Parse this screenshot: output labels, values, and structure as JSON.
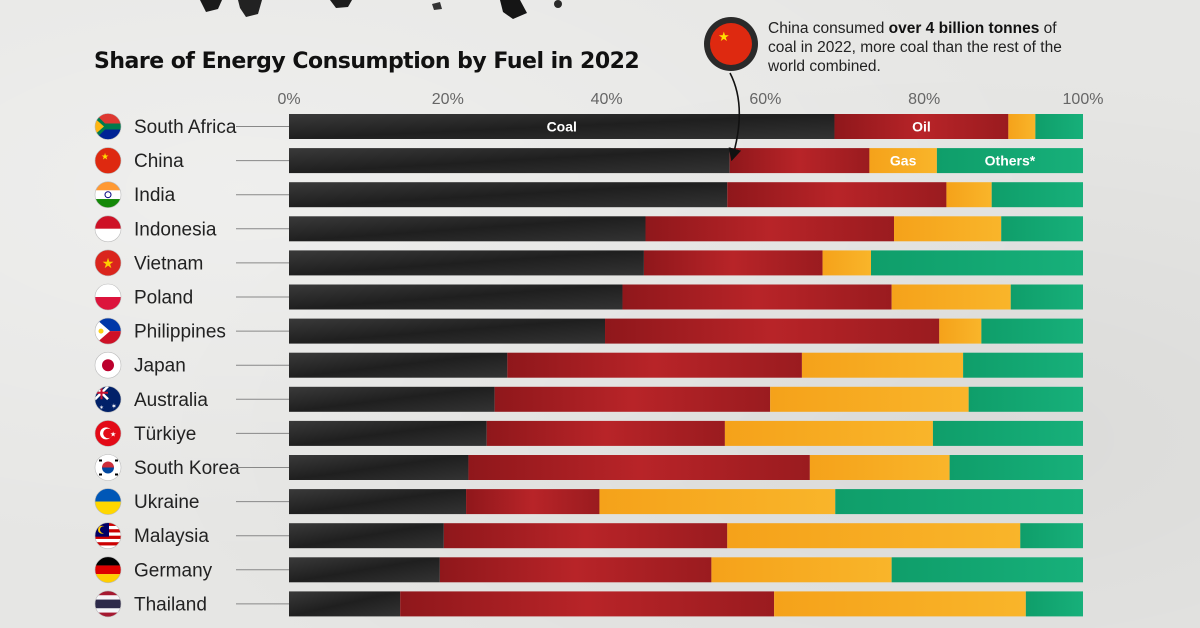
{
  "title": "Share of Energy Consumption by Fuel in 2022",
  "callout": {
    "text_before": "China consumed ",
    "text_bold": "over 4 billion tonnes",
    "text_after": " of coal in 2022, more coal than the rest of the world combined.",
    "icon": "china-flag-coal-icon"
  },
  "colors": {
    "coal": "#2b2b2b",
    "oil": "#a61e22",
    "gas": "#f7a81b",
    "others": "#13a772",
    "background": "#e6e6e4"
  },
  "chart_data": {
    "type": "bar",
    "orientation": "horizontal",
    "stacked": true,
    "normalized": true,
    "title": "Share of Energy Consumption by Fuel in 2022",
    "xlim": [
      0,
      100
    ],
    "x_ticks": [
      "0%",
      "20%",
      "40%",
      "60%",
      "80%",
      "100%"
    ],
    "categories": [
      "South Africa",
      "China",
      "India",
      "Indonesia",
      "Vietnam",
      "Poland",
      "Philippines",
      "Japan",
      "Australia",
      "Türkiye",
      "South Korea",
      "Ukraine",
      "Malaysia",
      "Germany",
      "Thailand"
    ],
    "series": [
      {
        "name": "Coal",
        "color": "#2b2b2b",
        "values": [
          68.7,
          55.5,
          55.2,
          44.9,
          44.7,
          42.0,
          39.8,
          27.5,
          25.9,
          24.9,
          22.6,
          22.3,
          19.5,
          19.0,
          14.0
        ]
      },
      {
        "name": "Oil",
        "color": "#a61e22",
        "values": [
          21.9,
          17.6,
          27.6,
          31.3,
          22.5,
          33.9,
          42.1,
          37.1,
          34.7,
          30.0,
          43.0,
          16.8,
          35.7,
          34.2,
          47.1
        ]
      },
      {
        "name": "Gas",
        "color": "#f7a81b",
        "values": [
          3.4,
          8.5,
          5.7,
          13.5,
          6.1,
          15.0,
          5.3,
          20.3,
          25.0,
          26.2,
          17.6,
          29.7,
          36.9,
          22.7,
          31.7
        ]
      },
      {
        "name": "Others*",
        "color": "#13a772",
        "values": [
          6.0,
          18.4,
          11.5,
          10.3,
          26.7,
          9.1,
          12.8,
          15.1,
          14.4,
          18.9,
          16.8,
          31.2,
          7.9,
          24.1,
          7.2
        ]
      }
    ],
    "inline_labels": [
      {
        "text": "Coal",
        "row": "South Africa",
        "series": "Coal"
      },
      {
        "text": "Oil",
        "row": "South Africa",
        "series": "Oil"
      },
      {
        "text": "Gas",
        "row": "China",
        "series": "Gas"
      },
      {
        "text": "Others*",
        "row": "China",
        "series": "Others*"
      }
    ],
    "flags": {
      "South Africa": "south-africa-flag-icon",
      "China": "china-flag-icon",
      "India": "india-flag-icon",
      "Indonesia": "indonesia-flag-icon",
      "Vietnam": "vietnam-flag-icon",
      "Poland": "poland-flag-icon",
      "Philippines": "philippines-flag-icon",
      "Japan": "japan-flag-icon",
      "Australia": "australia-flag-icon",
      "Türkiye": "turkiye-flag-icon",
      "South Korea": "south-korea-flag-icon",
      "Ukraine": "ukraine-flag-icon",
      "Malaysia": "malaysia-flag-icon",
      "Germany": "germany-flag-icon",
      "Thailand": "thailand-flag-icon"
    },
    "annotation_arrow": {
      "from": "callout",
      "to_row": "China",
      "to_series_boundary": "Coal"
    }
  }
}
